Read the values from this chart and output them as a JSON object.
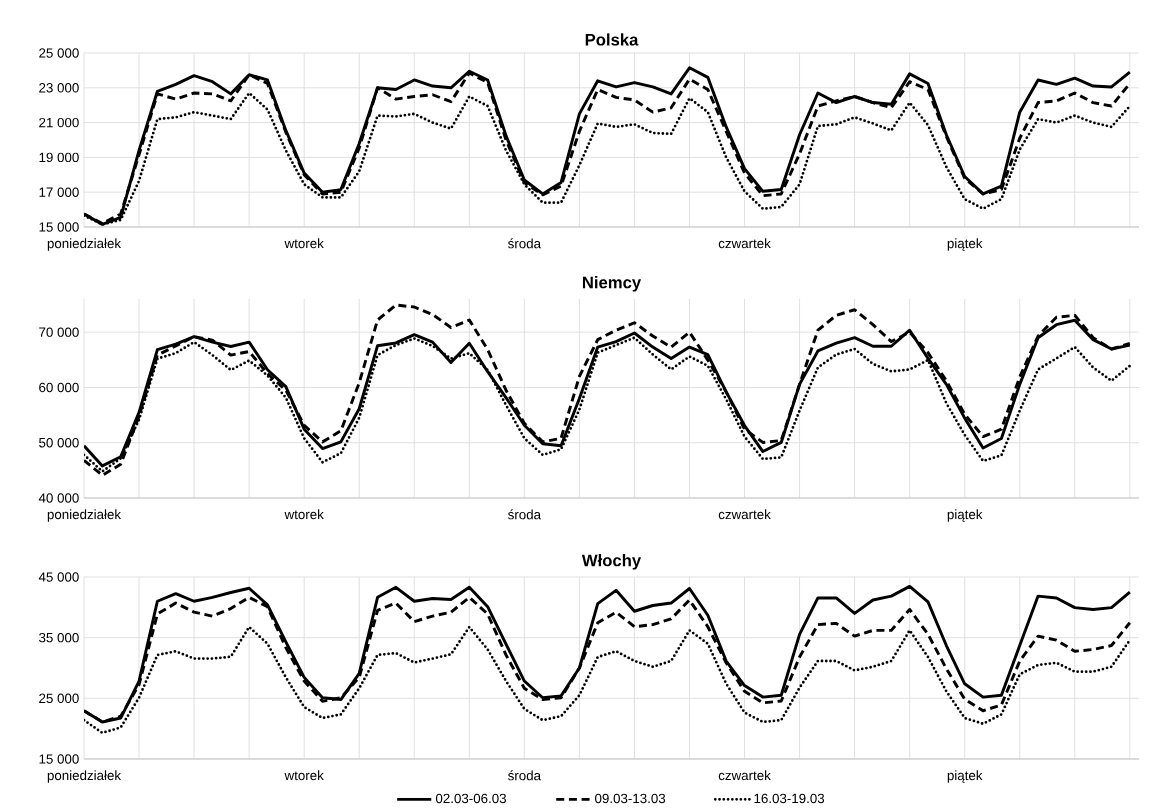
{
  "chart_data": [
    {
      "type": "line",
      "title": "Polska",
      "grid": true,
      "categories": [
        "poniedziałek",
        null,
        null,
        null,
        null,
        null,
        null,
        null,
        null,
        null,
        null,
        null,
        "wtorek",
        null,
        null,
        null,
        null,
        null,
        null,
        null,
        null,
        null,
        null,
        null,
        "środa",
        null,
        null,
        null,
        null,
        null,
        null,
        null,
        null,
        null,
        null,
        null,
        "czwartek",
        null,
        null,
        null,
        null,
        null,
        null,
        null,
        null,
        null,
        null,
        null,
        "piątek",
        null,
        null,
        null,
        null,
        null,
        null,
        null,
        null,
        null
      ],
      "ylim": [
        15000,
        25000
      ],
      "yticks": [
        {
          "value": 15000,
          "label": "15 000"
        },
        {
          "value": 17000,
          "label": "17 000"
        },
        {
          "value": 19000,
          "label": "19 000"
        },
        {
          "value": 21000,
          "label": "21 000"
        },
        {
          "value": 23000,
          "label": "23 000"
        },
        {
          "value": 25000,
          "label": "25 000"
        }
      ],
      "series": [
        {
          "color": "#000000",
          "line_style": "solid",
          "values": [
            15750,
            15150,
            15550,
            19400,
            22800,
            23200,
            23700,
            23350,
            22650,
            23750,
            23450,
            20550,
            18100,
            17000,
            17150,
            19800,
            23000,
            22900,
            23450,
            23100,
            23000,
            23950,
            23450,
            20250,
            17700,
            16900,
            17550,
            21500,
            23400,
            23050,
            23300,
            23050,
            22650,
            24150,
            23600,
            20750,
            18350,
            17050,
            17150,
            20300,
            22700,
            22150,
            22500,
            22150,
            22050,
            23800,
            23250,
            20300,
            17900,
            16900,
            17350,
            21600,
            23450,
            23200,
            23550,
            23100,
            23050,
            23900
          ]
        },
        {
          "color": "#000000",
          "line_style": "dashed",
          "values": [
            15750,
            15200,
            15750,
            19150,
            22650,
            22350,
            22700,
            22650,
            22250,
            23750,
            23250,
            20450,
            18000,
            16900,
            17000,
            19550,
            23000,
            22350,
            22500,
            22600,
            22200,
            23850,
            23300,
            20000,
            17550,
            16850,
            17350,
            20500,
            22900,
            22450,
            22300,
            21600,
            21850,
            23500,
            22900,
            20500,
            18100,
            16800,
            16900,
            19200,
            21950,
            22250,
            22500,
            22150,
            21850,
            23350,
            22900,
            20200,
            17800,
            16900,
            17150,
            20100,
            22150,
            22250,
            22700,
            22150,
            21950,
            23250
          ]
        },
        {
          "color": "#000000",
          "line_style": "dotted",
          "values": [
            15650,
            15150,
            15400,
            17650,
            21200,
            21300,
            21600,
            21400,
            21200,
            22700,
            21750,
            19400,
            17450,
            16700,
            16700,
            18200,
            21400,
            21350,
            21500,
            21000,
            20650,
            22500,
            21950,
            19400,
            17450,
            16400,
            16400,
            18550,
            20950,
            20750,
            20900,
            20400,
            20350,
            22400,
            21600,
            19000,
            17050,
            16050,
            16150,
            17450,
            20800,
            20900,
            21300,
            20950,
            20550,
            22150,
            20850,
            18450,
            16600,
            16050,
            16600,
            19450,
            21200,
            21000,
            21400,
            21000,
            20750,
            21950
          ]
        }
      ]
    },
    {
      "type": "line",
      "title": "Niemcy",
      "grid": true,
      "categories": [
        "poniedziałek",
        null,
        null,
        null,
        null,
        null,
        null,
        null,
        null,
        null,
        null,
        null,
        "wtorek",
        null,
        null,
        null,
        null,
        null,
        null,
        null,
        null,
        null,
        null,
        null,
        "środa",
        null,
        null,
        null,
        null,
        null,
        null,
        null,
        null,
        null,
        null,
        null,
        "czwartek",
        null,
        null,
        null,
        null,
        null,
        null,
        null,
        null,
        null,
        null,
        null,
        "piątek",
        null,
        null,
        null,
        null,
        null,
        null,
        null,
        null,
        null
      ],
      "ylim": [
        40000,
        76000
      ],
      "yticks": [
        {
          "value": 40000,
          "label": "40 000"
        },
        {
          "value": 50000,
          "label": "50 000"
        },
        {
          "value": 60000,
          "label": "60 000"
        },
        {
          "value": 70000,
          "label": "70 000"
        }
      ],
      "series": [
        {
          "color": "#000000",
          "line_style": "solid",
          "values": [
            49450,
            45800,
            47450,
            55500,
            66850,
            67850,
            69200,
            68200,
            67400,
            68200,
            63200,
            60150,
            52450,
            48950,
            50150,
            56150,
            67550,
            68050,
            69550,
            68200,
            64500,
            68000,
            62850,
            58150,
            53150,
            49800,
            49450,
            58000,
            67300,
            68300,
            69850,
            67300,
            65250,
            67300,
            65950,
            59200,
            53100,
            48400,
            50050,
            60550,
            66600,
            68000,
            69000,
            67450,
            67450,
            70350,
            65250,
            60550,
            54450,
            49050,
            50750,
            60550,
            69000,
            71350,
            72150,
            68650,
            66950,
            67650
          ]
        },
        {
          "color": "#000000",
          "line_style": "dashed",
          "values": [
            46800,
            44100,
            46100,
            54800,
            65850,
            67500,
            69200,
            68550,
            65850,
            66500,
            62500,
            59500,
            53150,
            50150,
            52150,
            60850,
            72200,
            74900,
            74550,
            73200,
            70850,
            72200,
            66850,
            59500,
            53500,
            50150,
            50800,
            62000,
            68650,
            70350,
            71700,
            69300,
            67300,
            70000,
            64950,
            59200,
            52450,
            50050,
            50400,
            60550,
            70350,
            73050,
            74050,
            71350,
            68300,
            70000,
            66300,
            61200,
            55150,
            51100,
            52450,
            61900,
            69300,
            72700,
            73050,
            69000,
            66950,
            67950
          ]
        },
        {
          "color": "#000000",
          "line_style": "dotted",
          "values": [
            47800,
            44800,
            47150,
            54150,
            65200,
            66200,
            68200,
            65850,
            63150,
            64850,
            62150,
            58150,
            50800,
            46450,
            48100,
            54500,
            65850,
            67650,
            68850,
            67500,
            65200,
            66200,
            63150,
            56800,
            50800,
            47800,
            48800,
            56000,
            66300,
            67650,
            69000,
            65950,
            63250,
            65600,
            63900,
            57850,
            51100,
            47050,
            47350,
            55800,
            63600,
            65950,
            66950,
            64250,
            62900,
            63250,
            64950,
            57150,
            51400,
            46700,
            47700,
            55800,
            63250,
            65250,
            67300,
            63600,
            61200,
            63900
          ]
        }
      ]
    },
    {
      "type": "line",
      "title": "Włochy",
      "grid": true,
      "legend": "bottom",
      "categories": [
        "poniedziałek",
        null,
        null,
        null,
        null,
        null,
        null,
        null,
        null,
        null,
        null,
        null,
        "wtorek",
        null,
        null,
        null,
        null,
        null,
        null,
        null,
        null,
        null,
        null,
        null,
        "środa",
        null,
        null,
        null,
        null,
        null,
        null,
        null,
        null,
        null,
        null,
        null,
        "czwartek",
        null,
        null,
        null,
        null,
        null,
        null,
        null,
        null,
        null,
        null,
        null,
        "piątek",
        null,
        null,
        null,
        null,
        null,
        null,
        null,
        null,
        null
      ],
      "ylim": [
        15000,
        45000
      ],
      "yticks": [
        {
          "value": 15000,
          "label": "15 000"
        },
        {
          "value": 25000,
          "label": "25 000"
        },
        {
          "value": 35000,
          "label": "35 000"
        },
        {
          "value": 45000,
          "label": "45 000"
        }
      ],
      "series": [
        {
          "name": "02.03-06.03",
          "color": "#000000",
          "line_style": "solid",
          "values": [
            22950,
            21100,
            21750,
            27850,
            41000,
            42250,
            41000,
            41650,
            42450,
            43150,
            40400,
            34300,
            28450,
            25100,
            24800,
            29100,
            41650,
            43300,
            41000,
            41450,
            41300,
            43300,
            40100,
            33950,
            27850,
            25100,
            25400,
            30000,
            40600,
            42800,
            39350,
            40300,
            40700,
            43100,
            38700,
            31150,
            27100,
            25200,
            25500,
            35550,
            41550,
            41550,
            39000,
            41200,
            41850,
            43450,
            40900,
            33700,
            27400,
            25200,
            25500,
            33700,
            41850,
            41550,
            39950,
            39650,
            39950,
            42500
          ]
        },
        {
          "name": "09.03-13.03",
          "color": "#000000",
          "line_style": "dashed",
          "values": [
            22950,
            21100,
            22050,
            27250,
            38900,
            40700,
            39200,
            38550,
            39800,
            41650,
            40100,
            33350,
            27850,
            24500,
            25100,
            28450,
            39500,
            40700,
            37650,
            38550,
            39200,
            41650,
            38900,
            32150,
            26650,
            24800,
            25100,
            30000,
            37450,
            39200,
            36800,
            37150,
            38100,
            41200,
            36800,
            30850,
            26150,
            24250,
            24550,
            31800,
            37150,
            37350,
            35250,
            36200,
            36200,
            39650,
            35550,
            29900,
            24850,
            22950,
            23900,
            31150,
            35250,
            34600,
            32750,
            33050,
            33700,
            37450
          ]
        },
        {
          "name": "16.03-19.03",
          "color": "#000000",
          "line_style": "dotted",
          "values": [
            21400,
            19300,
            20200,
            25100,
            32150,
            32750,
            31550,
            31550,
            31850,
            36750,
            34000,
            28450,
            23550,
            21750,
            22350,
            26650,
            32150,
            32450,
            30900,
            31550,
            32250,
            36750,
            33050,
            27850,
            23250,
            21400,
            22050,
            25500,
            31800,
            32750,
            31150,
            30200,
            31150,
            36200,
            34000,
            27400,
            22650,
            21100,
            21400,
            26750,
            31150,
            31150,
            29600,
            30200,
            31150,
            36200,
            31800,
            26150,
            21750,
            20800,
            22350,
            28950,
            30500,
            30850,
            29400,
            29400,
            30200,
            34600
          ]
        }
      ]
    }
  ]
}
